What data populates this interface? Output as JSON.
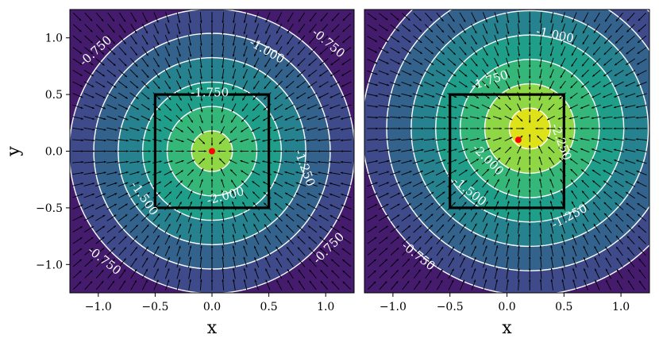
{
  "chart_data": [
    {
      "type": "heatmap",
      "subtype": "contour-fill with quiver",
      "xlabel": "x",
      "ylabel": "y",
      "xlim": [
        -1.25,
        1.25
      ],
      "ylim": [
        -1.25,
        1.25
      ],
      "xticks": [
        -1.0,
        -0.5,
        0.0,
        0.5,
        1.0
      ],
      "xtick_labels": [
        "−1.0",
        "−0.5",
        "0.0",
        "0.5",
        "1.0"
      ],
      "yticks": [
        -1.0,
        -0.5,
        0.0,
        0.5,
        1.0
      ],
      "ytick_labels": [
        "−1.0",
        "−0.5",
        "0.0",
        "0.5",
        "1.0"
      ],
      "colormap": "viridis",
      "potential_minimum": [
        0.0,
        0.0
      ],
      "fill_levels": [
        -0.75,
        -1.0,
        -1.25,
        -1.5,
        -1.75,
        -2.0
      ],
      "fill_colors": [
        "#3e4a89",
        "#33638d",
        "#26828e",
        "#1f9e89",
        "#35b779",
        "#8fd744"
      ],
      "background_color": "#451b6e",
      "contour_color": "#ffffff",
      "square": {
        "x": [
          -0.5,
          0.5
        ],
        "y": [
          -0.5,
          0.5
        ]
      },
      "marker": {
        "x": 0.0,
        "y": 0.0,
        "color": "#ff0000"
      },
      "contour_labels": [
        {
          "text": "-0.750",
          "x": -1.02,
          "y": 0.88,
          "rot": -42
        },
        {
          "text": "-0.750",
          "x": 1.02,
          "y": 0.95,
          "rot": 40
        },
        {
          "text": "-0.750",
          "x": -0.95,
          "y": -0.97,
          "rot": 38
        },
        {
          "text": "-0.750",
          "x": 1.03,
          "y": -0.86,
          "rot": -45
        },
        {
          "text": "-1.000",
          "x": 0.48,
          "y": 0.88,
          "rot": 30
        },
        {
          "text": "-1.250",
          "x": 0.81,
          "y": -0.15,
          "rot": 70
        },
        {
          "text": "-1.500",
          "x": -0.6,
          "y": -0.42,
          "rot": 55
        },
        {
          "text": "-1.750",
          "x": -0.02,
          "y": 0.51,
          "rot": 0
        },
        {
          "text": "-2.000",
          "x": 0.12,
          "y": -0.4,
          "rot": -15
        }
      ],
      "grid": false
    },
    {
      "type": "heatmap",
      "subtype": "contour-fill with quiver",
      "xlabel": "x",
      "ylabel": "",
      "xlim": [
        -1.25,
        1.25
      ],
      "ylim": [
        -1.25,
        1.25
      ],
      "xticks": [
        -1.0,
        -0.5,
        0.0,
        0.5,
        1.0
      ],
      "xtick_labels": [
        "−1.0",
        "−0.5",
        "0.0",
        "0.5",
        "1.0"
      ],
      "yticks": [],
      "ytick_labels": [],
      "colormap": "viridis",
      "potential_minimum": [
        0.2,
        0.2
      ],
      "fill_levels": [
        -0.75,
        -1.0,
        -1.25,
        -1.5,
        -1.75,
        -2.0,
        -2.25
      ],
      "fill_colors": [
        "#3e4a89",
        "#33638d",
        "#26828e",
        "#1f9e89",
        "#35b779",
        "#8fd744",
        "#dde318"
      ],
      "background_color": "#451b6e",
      "contour_color": "#ffffff",
      "square": {
        "x": [
          -0.5,
          0.5
        ],
        "y": [
          -0.5,
          0.5
        ]
      },
      "marker": {
        "x": 0.1,
        "y": 0.1,
        "color": "#ff0000"
      },
      "contour_labels": [
        {
          "text": "-1.000",
          "x": 0.42,
          "y": 1.02,
          "rot": 12
        },
        {
          "text": "-1.750",
          "x": -0.15,
          "y": 0.62,
          "rot": -18
        },
        {
          "text": "-2.250",
          "x": 0.47,
          "y": 0.08,
          "rot": 70
        },
        {
          "text": "-2.000",
          "x": -0.17,
          "y": -0.08,
          "rot": 45
        },
        {
          "text": "-1.500",
          "x": -0.33,
          "y": -0.36,
          "rot": 38
        },
        {
          "text": "-1.250",
          "x": 0.55,
          "y": -0.58,
          "rot": -28
        },
        {
          "text": "-0.750",
          "x": -0.78,
          "y": -0.93,
          "rot": 38
        }
      ],
      "grid": false
    }
  ]
}
